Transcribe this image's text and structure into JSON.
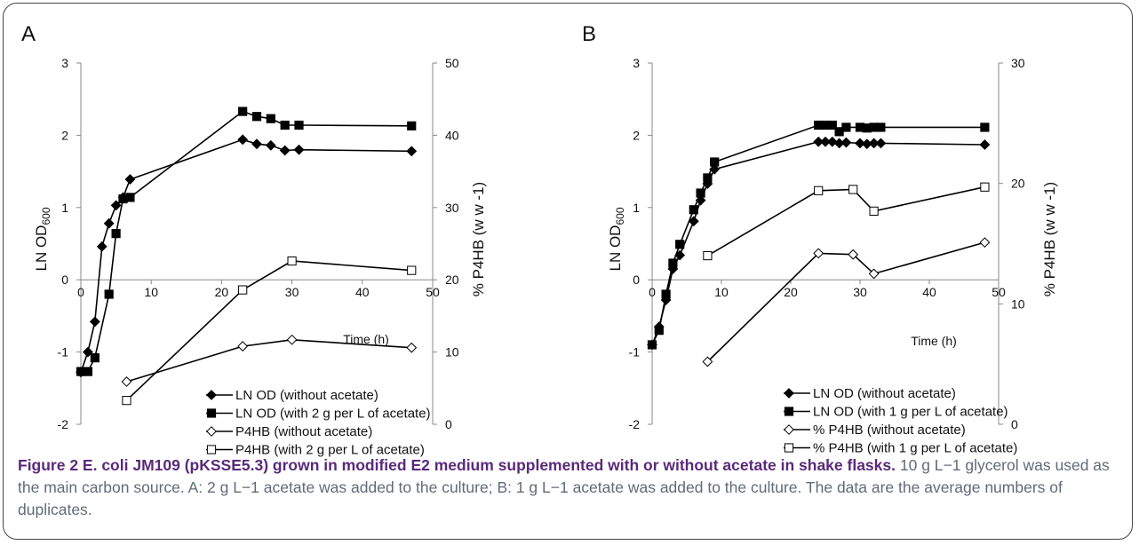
{
  "chart_data": [
    {
      "panel": "A",
      "type": "line",
      "xlabel": "Time (h)",
      "ylabel": "LN OD",
      "ylabel_sub": "600",
      "y2label": "% P4HB (w w -1)",
      "xlim": [
        0,
        50
      ],
      "ylim": [
        -2,
        3
      ],
      "y2lim": [
        0,
        50
      ],
      "x_ticks": [
        "0",
        "10",
        "20",
        "30",
        "40",
        "50"
      ],
      "y_ticks": [
        "-2",
        "-1",
        "0",
        "1",
        "2",
        "3"
      ],
      "y2_ticks": [
        "0",
        "10",
        "20",
        "30",
        "40",
        "50"
      ],
      "legend_position": "bottom-right",
      "series": [
        {
          "name": "LN OD (without acetate)",
          "marker": "diamond-filled",
          "axis": "left",
          "x": [
            0,
            1,
            2,
            3,
            4,
            5,
            6,
            7,
            23,
            25,
            27,
            29,
            31,
            47
          ],
          "y": [
            -1.28,
            -1.0,
            -0.58,
            0.46,
            0.78,
            1.03,
            1.14,
            1.39,
            1.94,
            1.88,
            1.86,
            1.79,
            1.8,
            1.78
          ]
        },
        {
          "name": "LN OD (with 2 g per L of acetate)",
          "marker": "square-filled",
          "axis": "left",
          "x": [
            0,
            1,
            2,
            4,
            5,
            6,
            7,
            23,
            25,
            27,
            29,
            31,
            47
          ],
          "y": [
            -1.27,
            -1.27,
            -1.08,
            -0.2,
            0.64,
            1.12,
            1.14,
            2.33,
            2.26,
            2.23,
            2.14,
            2.14,
            2.13
          ]
        },
        {
          "name": "P4HB (without acetate)",
          "marker": "diamond-open",
          "axis": "right",
          "x": [
            6.5,
            23,
            30,
            47
          ],
          "y": [
            5.9,
            10.8,
            11.7,
            10.6
          ]
        },
        {
          "name": "P4HB (with 2 g per L  of acetate)",
          "marker": "square-open",
          "axis": "right",
          "x": [
            6.5,
            23,
            30,
            47
          ],
          "y": [
            3.3,
            18.6,
            22.6,
            21.3
          ]
        }
      ]
    },
    {
      "panel": "B",
      "type": "line",
      "xlabel": "Time (h)",
      "ylabel": "LN OD",
      "ylabel_sub": "600",
      "y2label": "% P4HB (w w -1)",
      "xlim": [
        0,
        50
      ],
      "ylim": [
        -2,
        3
      ],
      "y2lim": [
        0,
        30
      ],
      "x_ticks": [
        "0",
        "10",
        "20",
        "30",
        "40",
        "50"
      ],
      "y_ticks": [
        "-2",
        "-1",
        "0",
        "1",
        "2",
        "3"
      ],
      "y2_ticks": [
        "0",
        "10",
        "20",
        "30"
      ],
      "legend_position": "bottom-right",
      "series": [
        {
          "name": "LN OD (without acetate)",
          "marker": "diamond-filled",
          "axis": "left",
          "x": [
            0,
            1,
            2,
            3,
            4,
            6,
            7,
            8,
            9,
            24,
            25,
            26,
            27,
            28,
            30,
            31,
            32,
            33,
            48
          ],
          "y": [
            -0.9,
            -0.65,
            -0.28,
            0.15,
            0.34,
            0.81,
            1.1,
            1.33,
            1.53,
            1.91,
            1.91,
            1.91,
            1.89,
            1.9,
            1.89,
            1.88,
            1.89,
            1.89,
            1.87
          ]
        },
        {
          "name": "LN OD (with 1 g per L of acetate)",
          "marker": "square-filled",
          "axis": "left",
          "x": [
            0,
            1,
            2,
            3,
            4,
            6,
            7,
            8,
            9,
            24,
            25,
            26,
            27,
            28,
            30,
            31,
            32,
            33,
            48
          ],
          "y": [
            -0.9,
            -0.7,
            -0.2,
            0.23,
            0.49,
            0.97,
            1.2,
            1.41,
            1.63,
            2.14,
            2.14,
            2.14,
            2.05,
            2.11,
            2.11,
            2.1,
            2.11,
            2.11,
            2.11
          ]
        },
        {
          "name": "% P4HB (without acetate)",
          "marker": "diamond-open",
          "axis": "right",
          "x": [
            8,
            24,
            29,
            32,
            48
          ],
          "y": [
            5.2,
            14.2,
            14.1,
            12.5,
            15.1
          ]
        },
        {
          "name": "% P4HB (with 1 g per L of acetate)",
          "marker": "square-open",
          "axis": "right",
          "x": [
            8,
            24,
            29,
            32,
            48
          ],
          "y": [
            14.0,
            19.4,
            19.5,
            17.7,
            19.7
          ]
        }
      ]
    }
  ],
  "caption": {
    "title": "Figure 2 E. coli JM109 (pKSSE5.3) grown in modified E2 medium supplemented with or without acetate in shake flasks.",
    "text": " 10 g L−1 glycerol was used as the main carbon source. A: 2 g L−1 acetate was added to the culture; B: 1 g L−1 acetate was added to the culture. The data are the average numbers of duplicates."
  }
}
